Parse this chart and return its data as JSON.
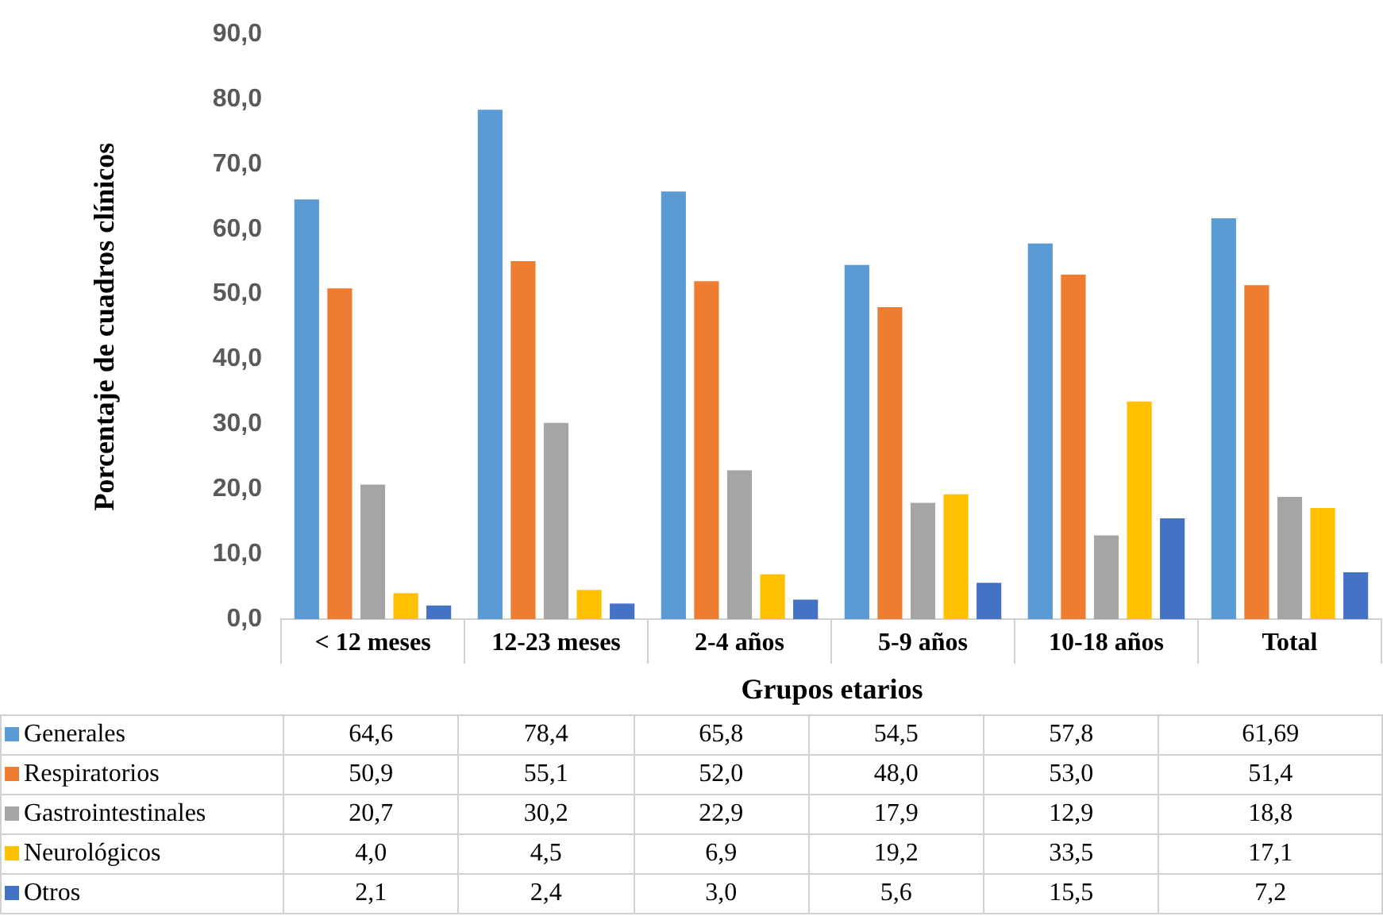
{
  "chart_data": {
    "type": "bar",
    "ylabel": "Porcentaje de cuadros clínicos",
    "xlabel": "Grupos etarios",
    "categories": [
      "< 12 meses",
      "12-23 meses",
      "2-4 años",
      "5-9 años",
      "10-18 años",
      "Total"
    ],
    "ylim": [
      0,
      90
    ],
    "yticks": [
      {
        "value": 0,
        "label": "0,0"
      },
      {
        "value": 10,
        "label": "10,0"
      },
      {
        "value": 20,
        "label": "20,0"
      },
      {
        "value": 30,
        "label": "30,0"
      },
      {
        "value": 40,
        "label": "40,0"
      },
      {
        "value": 50,
        "label": "50,0"
      },
      {
        "value": 60,
        "label": "60,0"
      },
      {
        "value": 70,
        "label": "70,0"
      },
      {
        "value": 80,
        "label": "80,0"
      },
      {
        "value": 90,
        "label": "90,0"
      }
    ],
    "legend": "bottom left",
    "series": [
      {
        "name": "Generales",
        "color": "#5b9bd5",
        "values": [
          64.6,
          78.4,
          65.8,
          54.5,
          57.8,
          61.69
        ],
        "value_labels": [
          "64,6",
          "78,4",
          "65,8",
          "54,5",
          "57,8",
          "61,69"
        ]
      },
      {
        "name": "Respiratorios",
        "color": "#ed7d31",
        "values": [
          50.9,
          55.1,
          52.0,
          48.0,
          53.0,
          51.4
        ],
        "value_labels": [
          "50,9",
          "55,1",
          "52,0",
          "48,0",
          "53,0",
          "51,4"
        ]
      },
      {
        "name": "Gastrointestinales",
        "color": "#a5a5a5",
        "values": [
          20.7,
          30.2,
          22.9,
          17.9,
          12.9,
          18.8
        ],
        "value_labels": [
          "20,7",
          "30,2",
          "22,9",
          "17,9",
          "12,9",
          "18,8"
        ]
      },
      {
        "name": "Neurológicos",
        "color": "#ffc000",
        "values": [
          4.0,
          4.5,
          6.9,
          19.2,
          33.5,
          17.1
        ],
        "value_labels": [
          "4,0",
          "4,5",
          "6,9",
          "19,2",
          "33,5",
          "17,1"
        ]
      },
      {
        "name": "Otros",
        "color": "#4472c4",
        "values": [
          2.1,
          2.4,
          3.0,
          5.6,
          15.5,
          7.2
        ],
        "value_labels": [
          "2,1",
          "2,4",
          "3,0",
          "5,6",
          "15,5",
          "7,2"
        ]
      }
    ]
  }
}
